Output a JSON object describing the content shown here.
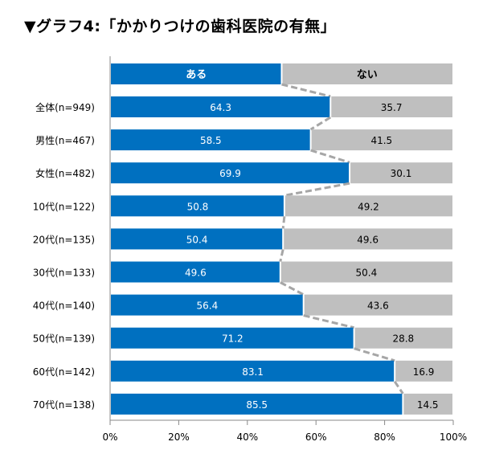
{
  "title": "▼グラフ4:「かかりつけの歯科医院の有無」",
  "chart_data": {
    "type": "bar",
    "stacked": true,
    "orientation": "horizontal",
    "legend_in_bar": {
      "yes": "ある",
      "no": "ない"
    },
    "categories": [
      "全体(n=949)",
      "男性(n=467)",
      "女性(n=482)",
      "10代(n=122)",
      "20代(n=135)",
      "30代(n=133)",
      "40代(n=140)",
      "50代(n=139)",
      "60代(n=142)",
      "70代(n=138)"
    ],
    "series": [
      {
        "name": "ある",
        "color": "#0070c0",
        "values": [
          64.3,
          58.5,
          69.9,
          50.8,
          50.4,
          49.6,
          56.4,
          71.2,
          83.1,
          85.5
        ]
      },
      {
        "name": "ない",
        "color": "#bfbfbf",
        "values": [
          35.7,
          41.5,
          30.1,
          49.2,
          49.6,
          50.4,
          43.6,
          28.8,
          16.9,
          14.5
        ]
      }
    ],
    "xlim": [
      0,
      100
    ],
    "xticks": [
      "0%",
      "20%",
      "40%",
      "60%",
      "80%",
      "100%"
    ],
    "connector_lines": "dashed",
    "grid": false
  }
}
